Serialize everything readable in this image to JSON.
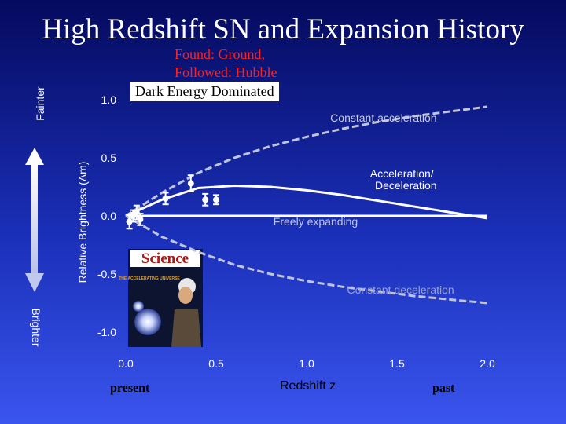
{
  "title": "High Redshift SN and Expansion History",
  "found_note": [
    "Found: Ground,",
    "Followed: Hubble"
  ],
  "colors": {
    "curve": "#c0c4d8",
    "data_points": "#ffffff",
    "accel_text": "#c6cce6",
    "freely_text": "#bfc5e0",
    "decel_text": "#9aa2c8"
  },
  "side_labels": {
    "fainter": "Fainter",
    "brighter": "Brighter"
  },
  "bottom_labels": {
    "present": "present",
    "past": "past"
  },
  "magazine": {
    "logo": "Science",
    "cover_text": "THE ACCELERATING UNIVERSE"
  },
  "chart_data": {
    "type": "scatter",
    "title": "High Redshift SN and Expansion History",
    "xlabel": "Redshift z",
    "ylabel": "Relative Brightness (Δm)",
    "xlim": [
      0,
      2
    ],
    "ylim": [
      -1,
      1
    ],
    "x_ticks": [
      "0.0",
      "0.5",
      "1.0",
      "1.5",
      "2.0"
    ],
    "y_ticks": [
      "1.0",
      "0.5",
      "0.0",
      "-0.5",
      "-1.0"
    ],
    "grid": false,
    "legend": "Dark Energy Dominated",
    "annotations": [
      {
        "text": "Constant acceleration",
        "x": 1.72,
        "y": 0.81
      },
      {
        "text": "Acceleration/ Deceleration",
        "x": 1.72,
        "y": 0.33
      },
      {
        "text": "Freely expanding",
        "x": 1.05,
        "y": -0.08
      },
      {
        "text": "Constant deceleration",
        "x": 1.52,
        "y": -0.67
      }
    ],
    "series": [
      {
        "type": "line",
        "style": "dashed",
        "x": [
          0,
          0.2,
          0.4,
          0.6,
          0.8,
          1.0,
          1.2,
          1.4,
          1.6,
          1.8,
          2.0
        ],
        "y": [
          0,
          0.2,
          0.37,
          0.5,
          0.6,
          0.68,
          0.75,
          0.81,
          0.86,
          0.9,
          0.94
        ]
      },
      {
        "type": "line",
        "style": "solid",
        "x": [
          0,
          0.2,
          0.4,
          0.6,
          0.8,
          1.0,
          1.2,
          1.4,
          1.6,
          1.8,
          2.0
        ],
        "y": [
          0,
          0.14,
          0.24,
          0.26,
          0.25,
          0.22,
          0.18,
          0.13,
          0.08,
          0.03,
          -0.02
        ]
      },
      {
        "type": "line",
        "style": "solid",
        "x": [
          0,
          0.5,
          1.0,
          1.5,
          2.0
        ],
        "y": [
          0,
          0,
          0,
          0,
          0
        ]
      },
      {
        "type": "line",
        "style": "dashed",
        "x": [
          0,
          0.2,
          0.4,
          0.6,
          0.8,
          1.0,
          1.2,
          1.4,
          1.6,
          1.8,
          2.0
        ],
        "y": [
          0,
          -0.18,
          -0.31,
          -0.42,
          -0.5,
          -0.56,
          -0.61,
          -0.65,
          -0.69,
          -0.72,
          -0.75
        ]
      },
      {
        "type": "scatter",
        "x": [
          0.02,
          0.04,
          0.06,
          0.08,
          0.22,
          0.36,
          0.44,
          0.5
        ],
        "y": [
          -0.05,
          0.0,
          0.03,
          -0.03,
          0.15,
          0.28,
          0.14,
          0.14
        ],
        "yerr": [
          0.06,
          0.05,
          0.06,
          0.05,
          0.05,
          0.07,
          0.05,
          0.04
        ]
      }
    ]
  }
}
